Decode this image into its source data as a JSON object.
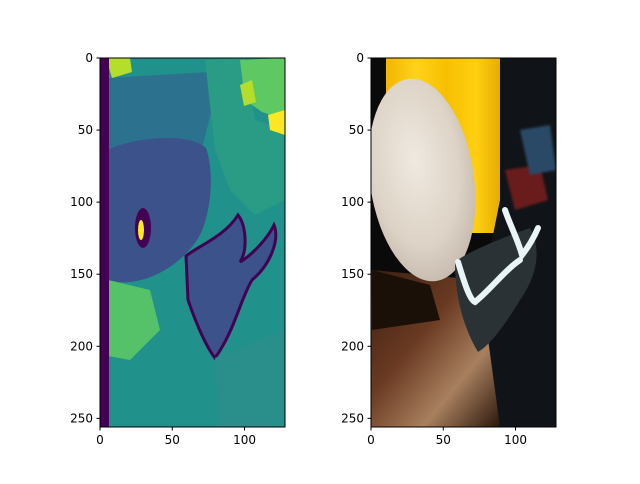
{
  "colors": {
    "figure_bg": "#ffffff",
    "axis": "#000000",
    "viridis_dark": "#440154",
    "viridis_blue": "#3b528b",
    "viridis_teal": "#21918c",
    "viridis_green": "#5ec962",
    "viridis_yellow": "#fde725"
  },
  "chart_data": [
    {
      "type": "heatmap",
      "title": "",
      "xlabel": "",
      "ylabel": "",
      "xlim": [
        0,
        128
      ],
      "ylim": [
        256,
        0
      ],
      "xticks": [
        0,
        50,
        100
      ],
      "yticks": [
        0,
        50,
        100,
        150,
        200,
        250
      ],
      "colormap": "viridis",
      "grid": false,
      "legend": "none",
      "content": "segmentation label map"
    },
    {
      "type": "heatmap",
      "title": "",
      "xlabel": "",
      "ylabel": "",
      "xlim": [
        0,
        128
      ],
      "ylim": [
        256,
        0
      ],
      "xticks": [
        0,
        50,
        100
      ],
      "yticks": [
        0,
        50,
        100,
        150,
        200,
        250
      ],
      "colormap": "rgb",
      "grid": false,
      "legend": "none",
      "content": "rgb photo: round wooden table, chair, yellow curtain"
    }
  ]
}
